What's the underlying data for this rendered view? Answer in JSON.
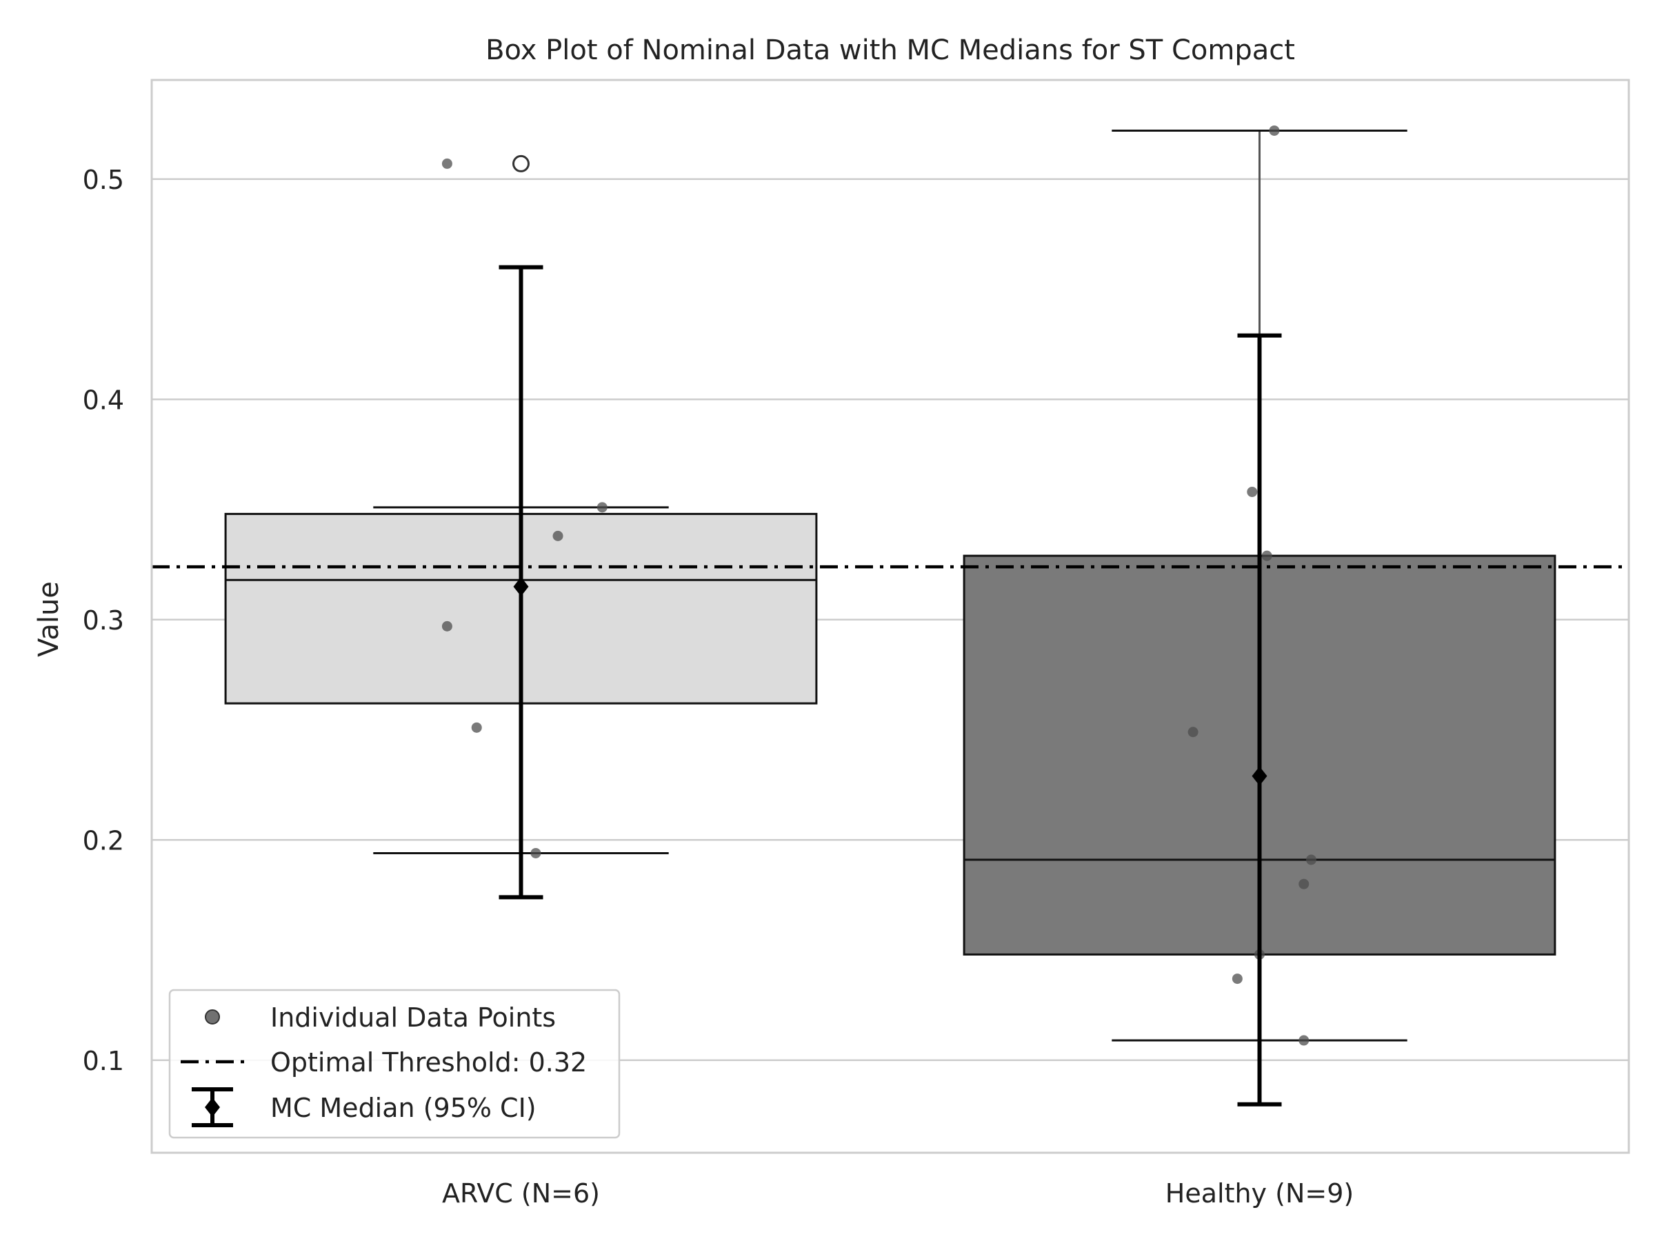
{
  "chart_data": {
    "type": "box",
    "title": "Box Plot of Nominal Data with MC Medians for ST Compact",
    "xlabel": "",
    "ylabel": "Value",
    "ylim": [
      0.058,
      0.545
    ],
    "yticks": [
      0.1,
      0.2,
      0.3,
      0.4,
      0.5
    ],
    "ytick_labels": [
      "0.1",
      "0.2",
      "0.3",
      "0.4",
      "0.5"
    ],
    "grid": true,
    "legend_position": "lower-left",
    "colors": {
      "box_arvc": "#dcdcdc",
      "box_healthy": "#7a7a7a",
      "points": "#4d4d4d",
      "threshold": "#000000",
      "mc_median": "#000000",
      "grid": "#cccccc"
    },
    "categories": [
      "ARVC (N=6)",
      "Healthy (N=9)"
    ],
    "boxes": [
      {
        "category": "ARVC (N=6)",
        "whisker_low": 0.194,
        "q1": 0.262,
        "median": 0.318,
        "q3": 0.348,
        "whisker_high": 0.351,
        "outliers": [
          0.507
        ]
      },
      {
        "category": "Healthy (N=9)",
        "whisker_low": 0.109,
        "q1": 0.148,
        "median": 0.191,
        "q3": 0.329,
        "whisker_high": 0.522,
        "outliers": []
      }
    ],
    "points": [
      {
        "category": 0,
        "jitter": -0.1,
        "y": 0.507
      },
      {
        "category": 0,
        "jitter": 0.11,
        "y": 0.351
      },
      {
        "category": 0,
        "jitter": 0.05,
        "y": 0.338
      },
      {
        "category": 0,
        "jitter": -0.1,
        "y": 0.297
      },
      {
        "category": 0,
        "jitter": -0.06,
        "y": 0.251
      },
      {
        "category": 0,
        "jitter": 0.02,
        "y": 0.194
      },
      {
        "category": 1,
        "jitter": 0.02,
        "y": 0.522
      },
      {
        "category": 1,
        "jitter": -0.01,
        "y": 0.358
      },
      {
        "category": 1,
        "jitter": 0.01,
        "y": 0.329
      },
      {
        "category": 1,
        "jitter": -0.09,
        "y": 0.249
      },
      {
        "category": 1,
        "jitter": 0.07,
        "y": 0.191
      },
      {
        "category": 1,
        "jitter": 0.06,
        "y": 0.18
      },
      {
        "category": 1,
        "jitter": 0.0,
        "y": 0.148
      },
      {
        "category": 1,
        "jitter": -0.03,
        "y": 0.137
      },
      {
        "category": 1,
        "jitter": 0.06,
        "y": 0.109
      }
    ],
    "mc_medians": [
      {
        "category": "ARVC (N=6)",
        "median": 0.315,
        "ci_low": 0.174,
        "ci_high": 0.46
      },
      {
        "category": "Healthy (N=9)",
        "median": 0.229,
        "ci_low": 0.08,
        "ci_high": 0.429
      }
    ],
    "threshold": 0.324,
    "legend": [
      {
        "key": "points",
        "label": "Individual Data Points"
      },
      {
        "key": "threshold",
        "label": "Optimal Threshold: 0.32"
      },
      {
        "key": "mc",
        "label": "MC Median (95% CI)"
      }
    ]
  }
}
